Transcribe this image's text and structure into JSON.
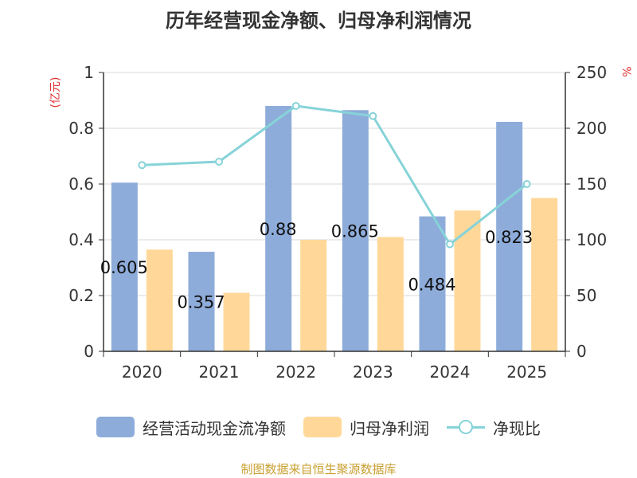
{
  "chart_data": {
    "type": "bar",
    "title": "历年经营现金净额、归母净利润情况",
    "categories": [
      "2020",
      "2021",
      "2022",
      "2023",
      "2024",
      "2025"
    ],
    "series": [
      {
        "name": "经营活动现金流净额",
        "type": "bar",
        "axis": "left",
        "color": "#8eacda",
        "values": [
          0.605,
          0.357,
          0.88,
          0.865,
          0.484,
          0.823
        ],
        "labels": [
          "0.605",
          "0.357",
          "0.88",
          "0.865",
          "0.484",
          "0.823"
        ]
      },
      {
        "name": "归母净利润",
        "type": "bar",
        "axis": "left",
        "color": "#ffd899",
        "values": [
          0.365,
          0.21,
          0.4,
          0.41,
          0.505,
          0.55
        ]
      },
      {
        "name": "净现比",
        "type": "line",
        "axis": "right",
        "color": "#86d3d8",
        "values": [
          167,
          170,
          220,
          211,
          96,
          150
        ]
      }
    ],
    "left_axis": {
      "label": "(亿元)",
      "min": 0,
      "max": 1,
      "ticks": [
        "0",
        "0.2",
        "0.4",
        "0.6",
        "0.8",
        "1"
      ]
    },
    "right_axis": {
      "label": "%",
      "min": 0,
      "max": 250,
      "ticks": [
        "0",
        "50",
        "100",
        "150",
        "200",
        "250"
      ]
    },
    "grid": "horizontal",
    "legend_position": "bottom"
  },
  "footer": {
    "source": "制图数据来自恒生聚源数据库"
  },
  "colors": {
    "axis_label_red": "#e03030",
    "source_gold": "#c9a032",
    "axis": "#333333",
    "grid": "#d9d9d9"
  }
}
